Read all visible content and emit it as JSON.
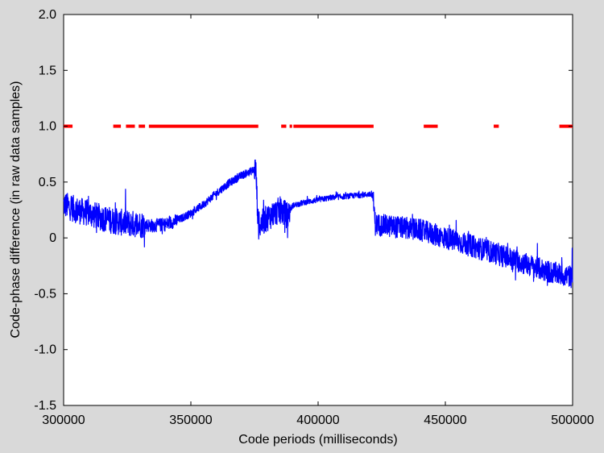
{
  "chart_data": {
    "type": "line",
    "title": "",
    "xlabel": "Code periods (milliseconds)",
    "ylabel": "Code-phase difference (in raw data samples)",
    "xlim": [
      300000,
      500000
    ],
    "ylim": [
      -1.5,
      2.0
    ],
    "x_ticks": [
      300000,
      350000,
      400000,
      450000,
      500000
    ],
    "x_tick_labels": [
      "300000",
      "350000",
      "400000",
      "450000",
      "500000"
    ],
    "y_ticks": [
      -1.5,
      -1.0,
      -0.5,
      0,
      0.5,
      1.0,
      1.5,
      2.0
    ],
    "y_tick_labels": [
      "-1.5",
      "-1.0",
      "-0.5",
      "0",
      "0.5",
      "1.0",
      "1.5",
      "2.0"
    ],
    "grid": false,
    "legend": "none",
    "series": [
      {
        "color": "#0000ff",
        "style": "line",
        "x": [
          300000,
          305000,
          310000,
          315000,
          320000,
          325000,
          330000,
          335000,
          340000,
          345000,
          350000,
          355000,
          360000,
          365000,
          370000,
          374000,
          375500,
          376500,
          380000,
          385000,
          388000,
          390000,
          395000,
          400000,
          405000,
          410000,
          415000,
          420000,
          421500,
          422500,
          430000,
          440000,
          450000,
          460000,
          470000,
          480000,
          490000,
          500000
        ],
        "y": [
          0.3,
          0.25,
          0.22,
          0.18,
          0.15,
          0.13,
          0.12,
          0.11,
          0.12,
          0.16,
          0.22,
          0.3,
          0.4,
          0.49,
          0.56,
          0.6,
          0.62,
          0.1,
          0.18,
          0.25,
          0.2,
          0.29,
          0.32,
          0.34,
          0.36,
          0.37,
          0.38,
          0.39,
          0.38,
          0.12,
          0.1,
          0.07,
          0.0,
          -0.07,
          -0.14,
          -0.22,
          -0.3,
          -0.35
        ]
      },
      {
        "color": "#ff0000",
        "style": "segments",
        "y": 1.0,
        "segments": [
          [
            300000,
            303500
          ],
          [
            319500,
            322500
          ],
          [
            324500,
            328000
          ],
          [
            329500,
            332000
          ],
          [
            333500,
            376500
          ],
          [
            385500,
            387500
          ],
          [
            388800,
            389800
          ],
          [
            390300,
            421800
          ],
          [
            441500,
            447000
          ],
          [
            469000,
            471000
          ],
          [
            494800,
            500000
          ]
        ]
      }
    ]
  }
}
